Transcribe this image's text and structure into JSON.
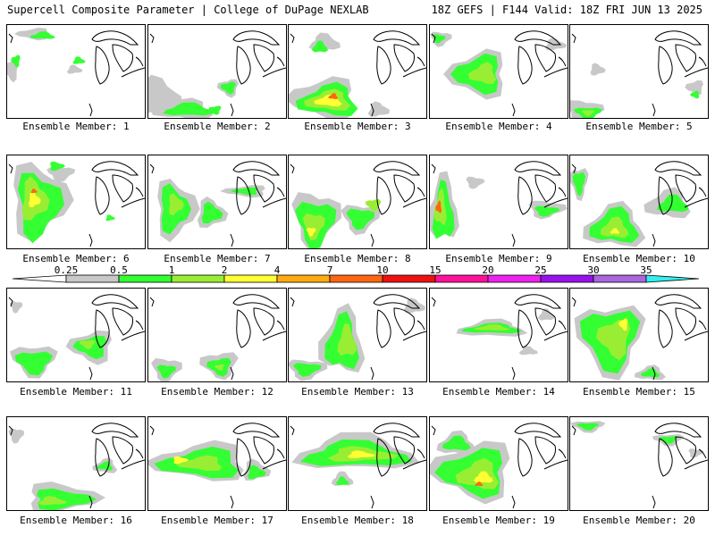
{
  "header": {
    "title": "Supercell Composite Parameter | College of DuPage NEXLAB",
    "valid": "18Z GEFS | F144 Valid: 18Z FRI JUN 13 2025"
  },
  "colors": {
    "levels": [
      "#c8c8c8",
      "#33ff33",
      "#99ee33",
      "#ffff33",
      "#ffaa11",
      "#ff6611",
      "#ee1111",
      "#ff1199",
      "#ee22ee",
      "#9911ee",
      "#aa66dd",
      "#33eeee"
    ],
    "grey": "#c8c8c8",
    "green": "#33ff33",
    "lightgreen": "#99ee33",
    "yellow": "#ffff33",
    "orange": "#ffaa11",
    "red": "#ff6611"
  },
  "colorbar": {
    "ticks": [
      "0.25",
      "0.5",
      "1",
      "2",
      "4",
      "7",
      "10",
      "15",
      "20",
      "25",
      "30",
      "35"
    ]
  },
  "panels": [
    {
      "label": "Ensemble Member: 1"
    },
    {
      "label": "Ensemble Member: 2"
    },
    {
      "label": "Ensemble Member: 3"
    },
    {
      "label": "Ensemble Member: 4"
    },
    {
      "label": "Ensemble Member: 5"
    },
    {
      "label": "Ensemble Member: 6"
    },
    {
      "label": "Ensemble Member: 7"
    },
    {
      "label": "Ensemble Member: 8"
    },
    {
      "label": "Ensemble Member: 9"
    },
    {
      "label": "Ensemble Member: 10"
    },
    {
      "label": "Ensemble Member: 11"
    },
    {
      "label": "Ensemble Member: 12"
    },
    {
      "label": "Ensemble Member: 13"
    },
    {
      "label": "Ensemble Member: 14"
    },
    {
      "label": "Ensemble Member: 15"
    },
    {
      "label": "Ensemble Member: 16"
    },
    {
      "label": "Ensemble Member: 17"
    },
    {
      "label": "Ensemble Member: 18"
    },
    {
      "label": "Ensemble Member: 19"
    },
    {
      "label": "Ensemble Member: 20"
    }
  ]
}
